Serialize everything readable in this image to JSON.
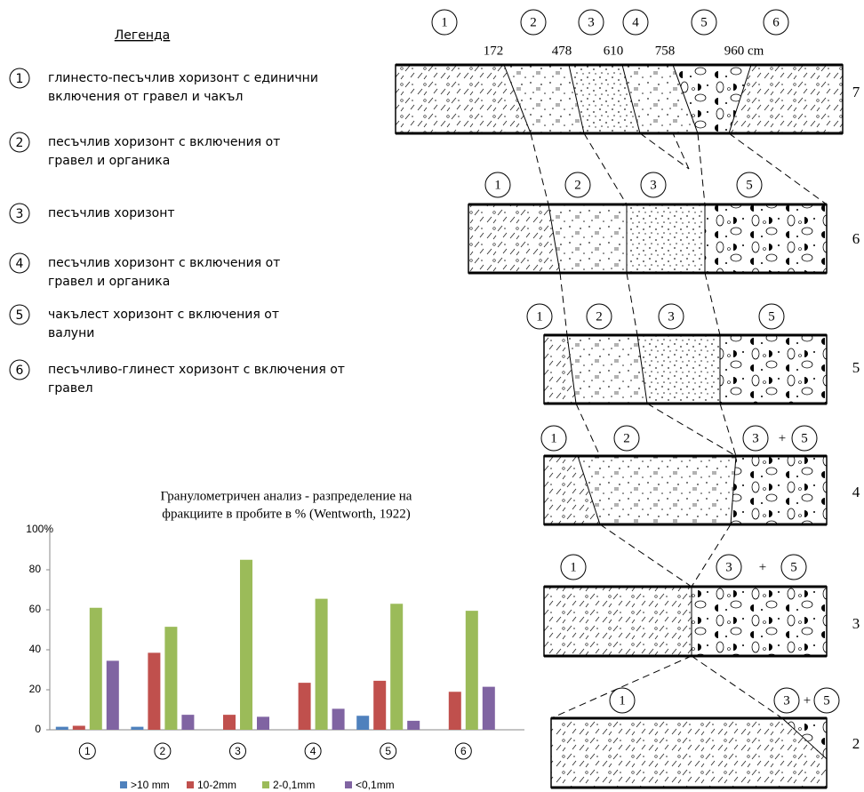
{
  "legend": {
    "title": "Легенда",
    "items": [
      {
        "number": "1",
        "lines": [
          "глинесто-песъчлив хоризонт с единични",
          "включения от гравел и чакъл"
        ]
      },
      {
        "number": "2",
        "lines": [
          "песъчлив хоризонт с включения от",
          "гравел и органика"
        ]
      },
      {
        "number": "3",
        "lines": [
          "песъчлив хоризонт"
        ]
      },
      {
        "number": "4",
        "lines": [
          "песъчлив хоризонт с включения от",
          "гравел и органика"
        ]
      },
      {
        "number": "5",
        "lines": [
          "чакълест хоризонт с включения от",
          "валуни"
        ]
      },
      {
        "number": "6",
        "lines": [
          "песъчливо-глинест хоризонт с включения от",
          "гравел"
        ]
      }
    ]
  },
  "depths": [
    "172",
    "478",
    "610",
    "758",
    "960 cm"
  ],
  "sections": [
    {
      "row": "7",
      "labels": [
        "1",
        "2",
        "3",
        "4",
        "5",
        "6"
      ]
    },
    {
      "row": "6",
      "labels": [
        "1",
        "2",
        "3",
        "5"
      ]
    },
    {
      "row": "5",
      "labels": [
        "1",
        "2",
        "3",
        "5"
      ]
    },
    {
      "row": "4",
      "labels": [
        "1",
        "2",
        "3",
        "+",
        "5"
      ]
    },
    {
      "row": "3",
      "labels": [
        "1",
        "3",
        "+",
        "5"
      ]
    },
    {
      "row": "2",
      "labels": [
        "1",
        "3",
        "+",
        "5"
      ]
    }
  ],
  "chart_data": {
    "type": "bar",
    "title": [
      "Гранулометричен анализ - разпределение на",
      "фракциите в пробите в % (Wentworth, 1922)"
    ],
    "categories": [
      "1",
      "2",
      "3",
      "4",
      "5",
      "6"
    ],
    "series": [
      {
        "name": ">10 mm",
        "color": "#4f81bd",
        "values": [
          1.5,
          1.5,
          0,
          0,
          7,
          0
        ]
      },
      {
        "name": "10-2mm",
        "color": "#c0504d",
        "values": [
          2,
          38.5,
          7.5,
          23.5,
          24.5,
          19
        ]
      },
      {
        "name": "2-0,1mm",
        "color": "#9bbb59",
        "values": [
          61,
          51.5,
          85,
          65.5,
          63,
          59.5
        ]
      },
      {
        "name": "<0,1mm",
        "color": "#8064a2",
        "values": [
          34.5,
          7.5,
          6.5,
          10.5,
          4.5,
          21.5
        ]
      }
    ],
    "ylim": [
      0,
      100
    ],
    "yticks": [
      0,
      20,
      40,
      60,
      80,
      {
        "value": 100,
        "label": "100%"
      }
    ],
    "grid": false,
    "legend": "bottom"
  }
}
